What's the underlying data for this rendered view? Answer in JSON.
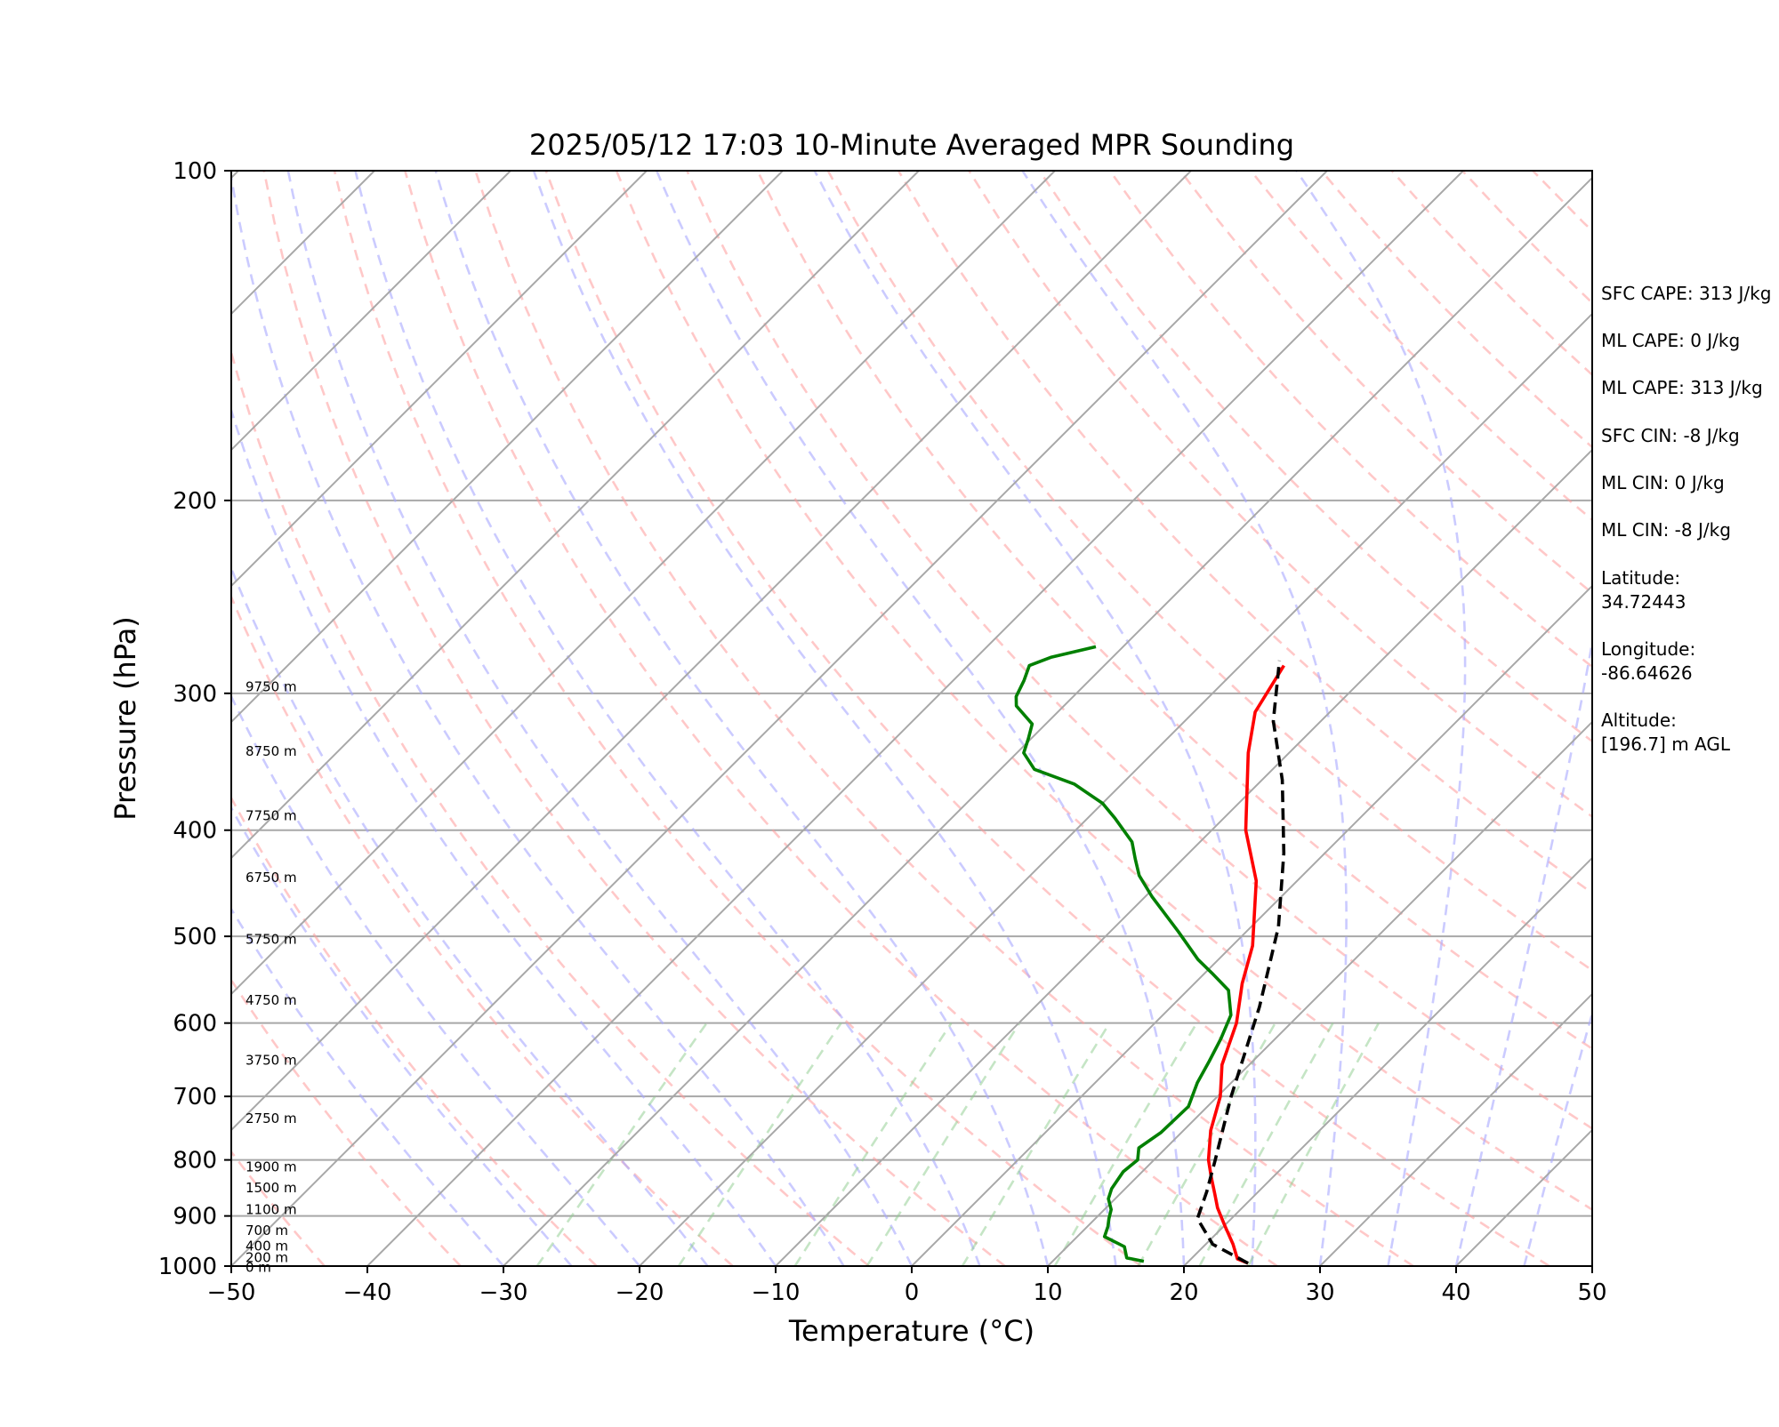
{
  "chart_data": {
    "type": "line",
    "title": "2025/05/12 17:03 10-Minute Averaged MPR Sounding",
    "xlabel": "Temperature (°C)",
    "ylabel": "Pressure (hPa)",
    "xlim": [
      -50,
      50
    ],
    "ylim": [
      1000,
      100
    ],
    "y_scale": "log",
    "grid": true,
    "x_ticks": [
      "−50",
      "−40",
      "−30",
      "−20",
      "−10",
      "0",
      "10",
      "20",
      "30",
      "40",
      "50"
    ],
    "y_ticks": [
      "100",
      "200",
      "300",
      "400",
      "500",
      "600",
      "700",
      "800",
      "900",
      "1000"
    ],
    "height_labels": [
      {
        "text": "0 m",
        "p": 1003
      },
      {
        "text": "200 m",
        "p": 982
      },
      {
        "text": "400 m",
        "p": 959
      },
      {
        "text": "700 m",
        "p": 928
      },
      {
        "text": "1100 m",
        "p": 888
      },
      {
        "text": "1500 m",
        "p": 848
      },
      {
        "text": "1900 m",
        "p": 812
      },
      {
        "text": "2750 m",
        "p": 733
      },
      {
        "text": "3750 m",
        "p": 649
      },
      {
        "text": "4750 m",
        "p": 572
      },
      {
        "text": "5750 m",
        "p": 503
      },
      {
        "text": "6750 m",
        "p": 442
      },
      {
        "text": "7750 m",
        "p": 388
      },
      {
        "text": "8750 m",
        "p": 339
      },
      {
        "text": "9750 m",
        "p": 296
      }
    ],
    "series": [
      {
        "role": "temperature",
        "color": "#ff0000",
        "points": [
          {
            "t": 24.5,
            "p": 994
          },
          {
            "t": 23.4,
            "p": 985
          },
          {
            "t": 22.0,
            "p": 955
          },
          {
            "t": 20.0,
            "p": 918
          },
          {
            "t": 18.2,
            "p": 885
          },
          {
            "t": 17.0,
            "p": 860
          },
          {
            "t": 15.5,
            "p": 830
          },
          {
            "t": 14.0,
            "p": 800
          },
          {
            "t": 12.0,
            "p": 752
          },
          {
            "t": 10.2,
            "p": 700
          },
          {
            "t": 8.0,
            "p": 655
          },
          {
            "t": 6.0,
            "p": 600
          },
          {
            "t": 3.5,
            "p": 552
          },
          {
            "t": 1.5,
            "p": 510
          },
          {
            "t": -3.0,
            "p": 445
          },
          {
            "t": -7.5,
            "p": 400
          },
          {
            "t": -13.0,
            "p": 340
          },
          {
            "t": -15.5,
            "p": 312
          },
          {
            "t": -16.8,
            "p": 283
          }
        ]
      },
      {
        "role": "dewpoint",
        "color": "#008000",
        "points": [
          {
            "t": 16.7,
            "p": 990
          },
          {
            "t": 15.2,
            "p": 983
          },
          {
            "t": 14.2,
            "p": 960
          },
          {
            "t": 12.0,
            "p": 940
          },
          {
            "t": 11.5,
            "p": 920
          },
          {
            "t": 11.0,
            "p": 905
          },
          {
            "t": 10.5,
            "p": 888
          },
          {
            "t": 9.5,
            "p": 868
          },
          {
            "t": 9.0,
            "p": 850
          },
          {
            "t": 8.6,
            "p": 820
          },
          {
            "t": 8.8,
            "p": 800
          },
          {
            "t": 8.0,
            "p": 780
          },
          {
            "t": 8.5,
            "p": 755
          },
          {
            "t": 8.6,
            "p": 715
          },
          {
            "t": 7.5,
            "p": 680
          },
          {
            "t": 6.8,
            "p": 650
          },
          {
            "t": 6.0,
            "p": 620
          },
          {
            "t": 5.0,
            "p": 590
          },
          {
            "t": 3.0,
            "p": 560
          },
          {
            "t": 0.5,
            "p": 540
          },
          {
            "t": -1.5,
            "p": 525
          },
          {
            "t": -5.0,
            "p": 495
          },
          {
            "t": -9.5,
            "p": 460
          },
          {
            "t": -12.0,
            "p": 440
          },
          {
            "t": -13.5,
            "p": 425
          },
          {
            "t": -15.0,
            "p": 410
          },
          {
            "t": -18.0,
            "p": 390
          },
          {
            "t": -20.0,
            "p": 378
          },
          {
            "t": -23.5,
            "p": 363
          },
          {
            "t": -27.5,
            "p": 352
          },
          {
            "t": -29.5,
            "p": 340
          },
          {
            "t": -30.2,
            "p": 330
          },
          {
            "t": -31.0,
            "p": 320
          },
          {
            "t": -33.5,
            "p": 308
          },
          {
            "t": -34.2,
            "p": 302
          },
          {
            "t": -34.8,
            "p": 292
          },
          {
            "t": -35.5,
            "p": 283
          },
          {
            "t": -34.5,
            "p": 278
          },
          {
            "t": -32.0,
            "p": 272
          }
        ]
      },
      {
        "role": "parcel",
        "color": "#000000",
        "style": "dashed",
        "points": [
          {
            "t": 24.5,
            "p": 994
          },
          {
            "t": 20.5,
            "p": 955
          },
          {
            "t": 17.5,
            "p": 905
          },
          {
            "t": 16.2,
            "p": 855
          },
          {
            "t": 14.5,
            "p": 800
          },
          {
            "t": 11.0,
            "p": 700
          },
          {
            "t": 6.5,
            "p": 580
          },
          {
            "t": 2.0,
            "p": 490
          },
          {
            "t": -3.0,
            "p": 420
          },
          {
            "t": -8.5,
            "p": 360
          },
          {
            "t": -13.5,
            "p": 318
          },
          {
            "t": -17.5,
            "p": 280
          }
        ]
      }
    ]
  },
  "side_info": {
    "sfc_cape": "SFC CAPE: 313 J/kg",
    "ml_cape_0": "ML CAPE: 0 J/kg",
    "ml_cape_313": "ML CAPE: 313 J/kg",
    "sfc_cin": "SFC CIN: -8 J/kg",
    "ml_cin_0": "ML CIN: 0 J/kg",
    "ml_cin_8": "ML CIN: -8 J/kg",
    "latitude_label": "Latitude:",
    "latitude_value": "34.72443",
    "longitude_label": "Longitude:",
    "longitude_value": "-86.64626",
    "altitude_label": "Altitude:",
    "altitude_value": "[196.7] m AGL"
  }
}
